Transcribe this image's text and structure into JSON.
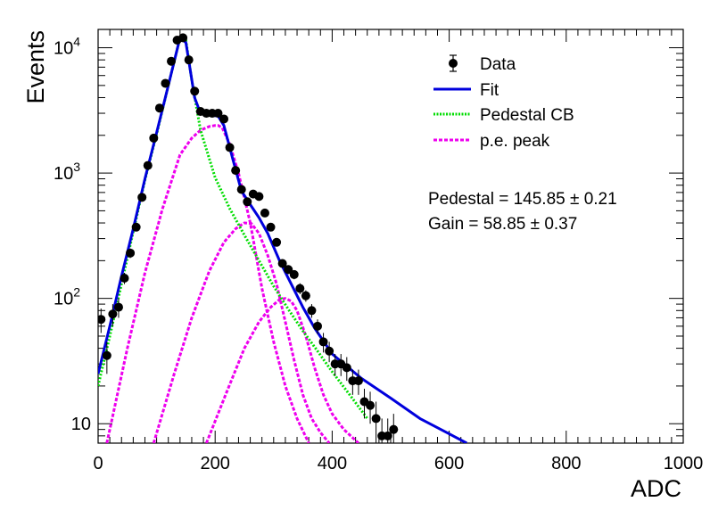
{
  "chart_data": {
    "type": "line",
    "xlabel": "ADC",
    "ylabel": "Events",
    "xlim": [
      0,
      1000
    ],
    "ylim": [
      7,
      14000
    ],
    "yscale": "log",
    "x_ticks": [
      "0",
      "200",
      "400",
      "600",
      "800",
      "1000"
    ],
    "x_tick_values": [
      0,
      200,
      400,
      600,
      800,
      1000
    ],
    "y_ticks": [
      {
        "value": 10,
        "base": "10",
        "exp": ""
      },
      {
        "value": 100,
        "base": "10",
        "exp": "2"
      },
      {
        "value": 1000,
        "base": "10",
        "exp": "3"
      },
      {
        "value": 10000,
        "base": "10",
        "exp": "4"
      }
    ],
    "legend": {
      "placement": "top-right",
      "entries": [
        {
          "label": "Data",
          "style": "marker",
          "color": "#000000"
        },
        {
          "label": "Fit",
          "style": "solid",
          "color": "#0000dd"
        },
        {
          "label": "Pedestal CB",
          "style": "dotted",
          "color": "#00dd00"
        },
        {
          "label": "p.e. peak",
          "style": "dotted",
          "color": "#ee00ee"
        }
      ]
    },
    "annotations": {
      "pedestal": "Pedestal = 145.85 ± 0.21",
      "gain": "Gain = 58.85 ± 0.37"
    },
    "series": [
      {
        "name": "Data",
        "kind": "points",
        "color": "#000000",
        "x": [
          5,
          15,
          25,
          35,
          45,
          55,
          65,
          75,
          85,
          95,
          105,
          115,
          125,
          135,
          145,
          155,
          165,
          175,
          185,
          195,
          205,
          215,
          225,
          235,
          245,
          255,
          265,
          275,
          285,
          295,
          305,
          315,
          325,
          335,
          345,
          355,
          365,
          375,
          385,
          395,
          405,
          415,
          425,
          435,
          445,
          455,
          465,
          475,
          485,
          495,
          505
        ],
        "y": [
          68,
          35,
          75,
          85,
          145,
          230,
          370,
          640,
          1150,
          1900,
          3300,
          5200,
          7800,
          11500,
          12000,
          8000,
          4500,
          3100,
          3000,
          3000,
          3000,
          2700,
          1600,
          1050,
          740,
          590,
          680,
          650,
          480,
          370,
          280,
          190,
          170,
          155,
          120,
          105,
          80,
          60,
          45,
          38,
          30,
          30,
          28,
          22,
          22,
          15,
          14,
          11,
          8,
          8,
          9
        ],
        "err": [
          15,
          10,
          15,
          15,
          15,
          20,
          25,
          30,
          40,
          50,
          60,
          80,
          100,
          120,
          120,
          100,
          70,
          60,
          60,
          60,
          60,
          55,
          40,
          35,
          30,
          25,
          28,
          25,
          22,
          20,
          18,
          15,
          14,
          13,
          12,
          11,
          10,
          8,
          8,
          7,
          6,
          6,
          6,
          5,
          5,
          4,
          4,
          4,
          3,
          3,
          3
        ]
      },
      {
        "name": "Fit",
        "kind": "line",
        "color": "#0000dd",
        "x": [
          0,
          20,
          40,
          60,
          80,
          100,
          120,
          140,
          150,
          165,
          175,
          190,
          205,
          215,
          230,
          245,
          260,
          275,
          290,
          310,
          330,
          350,
          370,
          400,
          450,
          500,
          550,
          600,
          630
        ],
        "y": [
          25,
          60,
          150,
          360,
          900,
          2100,
          5000,
          12000,
          11000,
          4000,
          3000,
          2900,
          2850,
          2400,
          1300,
          720,
          560,
          440,
          330,
          200,
          130,
          85,
          58,
          36,
          23,
          16,
          11,
          8.3,
          7
        ]
      },
      {
        "name": "Pedestal CB",
        "kind": "line",
        "color": "#00dd00",
        "x": [
          0,
          20,
          40,
          60,
          80,
          100,
          120,
          140,
          150,
          160,
          175,
          200,
          225,
          250,
          275,
          300,
          325,
          350,
          375,
          400,
          430,
          460
        ],
        "y": [
          20,
          50,
          130,
          340,
          880,
          2050,
          5000,
          12000,
          11500,
          5500,
          2200,
          920,
          520,
          320,
          200,
          125,
          82,
          55,
          38,
          26,
          17,
          11
        ]
      },
      {
        "name": "p.e. peak 1",
        "kind": "line",
        "color": "#ee00ee",
        "x": [
          15,
          50,
          80,
          110,
          140,
          160,
          175,
          190,
          200,
          205,
          212,
          225,
          240,
          260,
          280,
          300,
          320,
          340,
          360
        ],
        "y": [
          7,
          40,
          160,
          520,
          1400,
          1900,
          2200,
          2350,
          2400,
          2400,
          2300,
          1700,
          1000,
          400,
          120,
          45,
          20,
          11,
          7
        ]
      },
      {
        "name": "p.e. peak 2",
        "kind": "line",
        "color": "#ee00ee",
        "x": [
          95,
          130,
          160,
          190,
          215,
          235,
          250,
          262,
          275,
          290,
          305,
          320,
          335,
          350,
          365,
          380,
          395
        ],
        "y": [
          7,
          25,
          70,
          165,
          280,
          360,
          400,
          395,
          330,
          220,
          130,
          65,
          32,
          17,
          11,
          8.5,
          7
        ]
      },
      {
        "name": "p.e. peak 3",
        "kind": "line",
        "color": "#ee00ee",
        "x": [
          185,
          220,
          250,
          275,
          295,
          310,
          320,
          330,
          340,
          355,
          370,
          385,
          400,
          420,
          445
        ],
        "y": [
          7,
          18,
          40,
          65,
          85,
          98,
          100,
          95,
          80,
          50,
          28,
          17,
          12,
          9,
          7
        ]
      }
    ]
  }
}
